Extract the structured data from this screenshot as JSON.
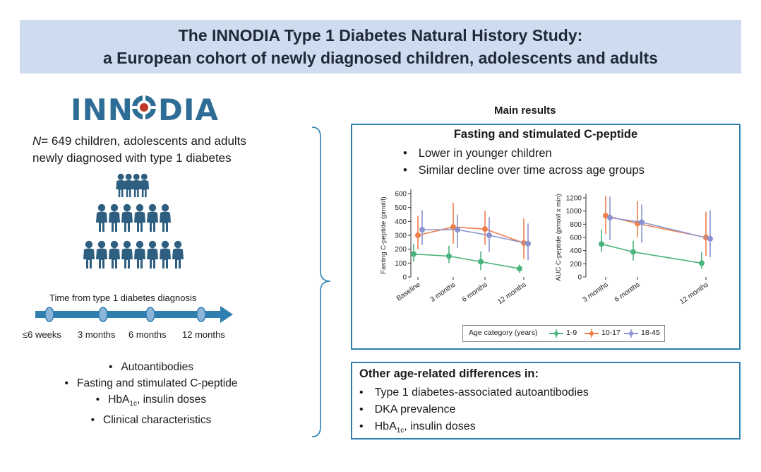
{
  "title": {
    "line1": "The INNODIA Type 1 Diabetes Natural History Study:",
    "line2": "a European cohort of newly diagnosed children, adolescents and adults"
  },
  "logo": {
    "text": "INN☸DIA",
    "name": "INNODIA"
  },
  "cohort": {
    "n_prefix": "N",
    "n_text": "= 649 children, adolescents and adults",
    "n_text2": "newly diagnosed with type 1 diabetes"
  },
  "timeline": {
    "label": "Time from type 1 diabetes diagnosis",
    "ticks": [
      "≤6 weeks",
      "3 months",
      "6 months",
      "12 months"
    ]
  },
  "left_bullets": {
    "b1": "Autoantibodies",
    "b2": "Fasting and stimulated C-peptide",
    "b3_pre": "HbA",
    "b3_sub": "1c",
    "b3_post": ", insulin doses",
    "b4": "Clinical characteristics"
  },
  "main_results": {
    "heading": "Main results",
    "box1_title": "Fasting and stimulated C-peptide",
    "box1_bullets": [
      "Lower in younger children",
      "Similar decline over time across age groups"
    ],
    "box2_heading": "Other age-related differences in:",
    "box2_b1": "Type 1 diabetes-associated autoantibodies",
    "box2_b2": "DKA prevalence",
    "box2_b3_pre": "HbA",
    "box2_b3_sub": "1c",
    "box2_b3_post": ", insulin doses"
  },
  "colors": {
    "accent": "#2e7fb0",
    "title_band": "#cfdcef",
    "people": "#2e5f80",
    "series_1_9": "#4bb37d",
    "series_10_17": "#ef7f4a",
    "series_18_45": "#8a93d0"
  },
  "legend": {
    "title": "Age category (years)",
    "entries": [
      "1-9",
      "10-17",
      "18-45"
    ]
  },
  "chart_data": [
    {
      "type": "line",
      "ylabel": "Fasting C-peptide (pmol/l)",
      "xlabel": "",
      "categories": [
        "Baseline",
        "3 months",
        "6 months",
        "12 months"
      ],
      "ylim": [
        0,
        600
      ],
      "yticks": [
        0,
        100,
        200,
        300,
        400,
        500,
        600
      ],
      "series": [
        {
          "name": "1-9",
          "values": [
            165,
            150,
            110,
            60
          ],
          "lo": [
            110,
            100,
            50,
            30
          ],
          "hi": [
            240,
            225,
            185,
            90
          ]
        },
        {
          "name": "10-17",
          "values": [
            300,
            360,
            345,
            245
          ],
          "lo": [
            200,
            240,
            230,
            130
          ],
          "hi": [
            440,
            535,
            475,
            420
          ]
        },
        {
          "name": "18-45",
          "values": [
            340,
            340,
            300,
            240
          ],
          "lo": [
            230,
            210,
            180,
            120
          ],
          "hi": [
            480,
            450,
            430,
            385
          ]
        }
      ]
    },
    {
      "type": "line",
      "ylabel": "AUC C-peptide (pmol/l x min)",
      "xlabel": "",
      "categories": [
        "3 months",
        "6 months",
        "12 months"
      ],
      "ylim": [
        0,
        1200
      ],
      "yticks": [
        0,
        200,
        400,
        600,
        800,
        1000,
        1200
      ],
      "series": [
        {
          "name": "1-9",
          "values": [
            500,
            380,
            210
          ],
          "lo": [
            380,
            250,
            120
          ],
          "hi": [
            720,
            550,
            380
          ]
        },
        {
          "name": "10-17",
          "values": [
            930,
            810,
            600
          ],
          "lo": [
            650,
            600,
            320
          ],
          "hi": [
            1230,
            1150,
            990
          ]
        },
        {
          "name": "18-45",
          "values": [
            900,
            830,
            580
          ],
          "lo": [
            560,
            520,
            300
          ],
          "hi": [
            1220,
            1100,
            1010
          ]
        }
      ]
    }
  ]
}
